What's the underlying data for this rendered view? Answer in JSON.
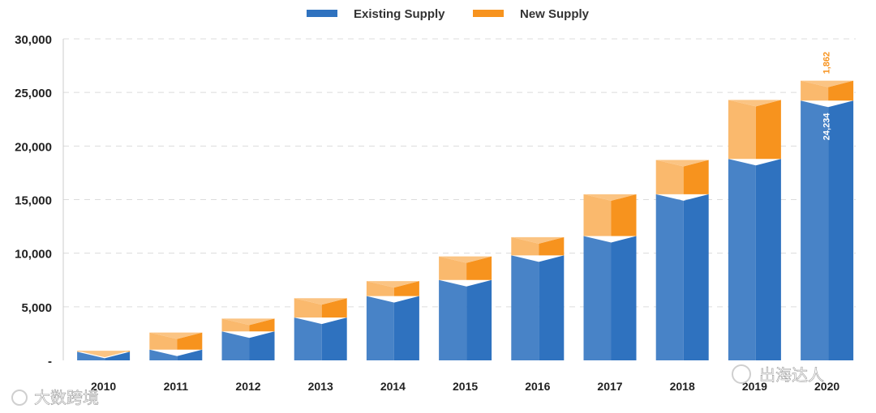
{
  "chart_data": {
    "type": "bar",
    "stacked": true,
    "style": "3d",
    "categories": [
      "2010",
      "2011",
      "2012",
      "2013",
      "2014",
      "2015",
      "2016",
      "2017",
      "2018",
      "2019",
      "2020"
    ],
    "series": [
      {
        "name": "Existing Supply",
        "color": "#2f72bf",
        "values": [
          800,
          1000,
          2700,
          4000,
          6000,
          7500,
          9800,
          11600,
          15500,
          18800,
          24234
        ]
      },
      {
        "name": "New Supply",
        "color": "#f7931e",
        "values": [
          100,
          1600,
          1200,
          1800,
          1400,
          2200,
          1700,
          3900,
          3200,
          5500,
          1862
        ]
      }
    ],
    "data_labels": [
      {
        "series": "Existing Supply",
        "category": "2020",
        "text": "24,234"
      },
      {
        "series": "New Supply",
        "category": "2020",
        "text": "1,862"
      }
    ],
    "yticks": [
      "-",
      "5,000",
      "10,000",
      "15,000",
      "20,000",
      "25,000",
      "30,000"
    ],
    "ylim": [
      0,
      30000
    ],
    "grid": true,
    "legend": "top-center",
    "title": "",
    "xlabel": "",
    "ylabel": ""
  },
  "watermarks": [
    "大数跨境",
    "出海达人"
  ]
}
